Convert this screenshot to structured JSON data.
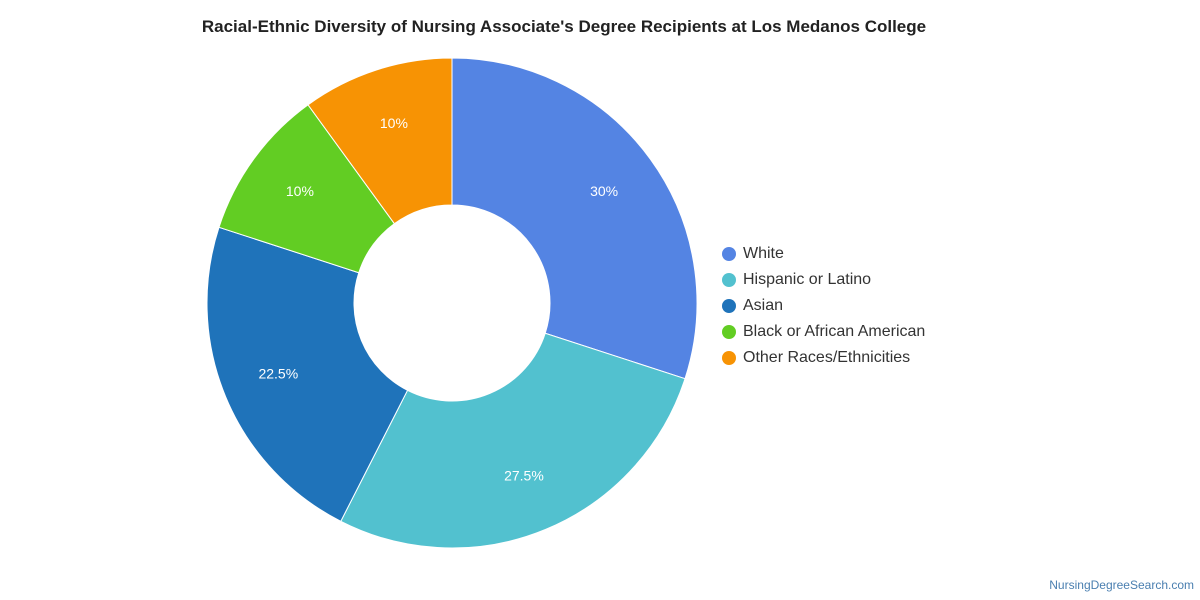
{
  "chart_data": {
    "type": "pie",
    "donut": true,
    "title": "Racial-Ethnic Diversity of Nursing Associate's Degree Recipients at Los Medanos College",
    "legend_position": "right",
    "slices": [
      {
        "label": "White",
        "value": 30,
        "display": "30%",
        "color": "#5484e3"
      },
      {
        "label": "Hispanic or Latino",
        "value": 27.5,
        "display": "27.5%",
        "color": "#52c1cf"
      },
      {
        "label": "Asian",
        "value": 22.5,
        "display": "22.5%",
        "color": "#1f73ba"
      },
      {
        "label": "Black or African American",
        "value": 10,
        "display": "10%",
        "color": "#62cd23"
      },
      {
        "label": "Other Races/Ethnicities",
        "value": 10,
        "display": "10%",
        "color": "#f79304"
      }
    ]
  },
  "footer": {
    "source": "NursingDegreeSearch.com"
  }
}
